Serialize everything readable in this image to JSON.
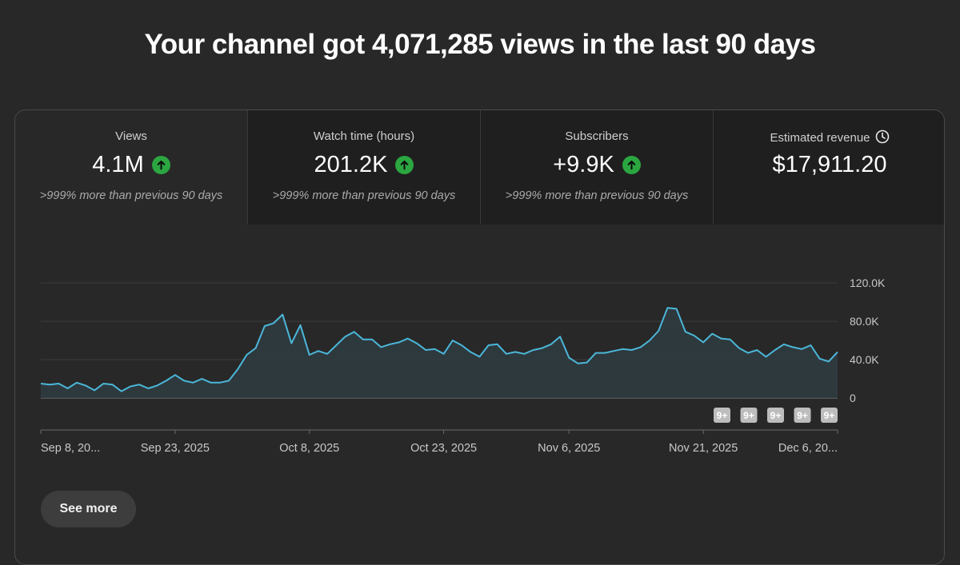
{
  "headline": "Your channel got 4,071,285 views in the last 90 days",
  "metrics": [
    {
      "label": "Views",
      "value": "4.1M",
      "delta": ">999% more than previous 90 days",
      "trend": "up"
    },
    {
      "label": "Watch time (hours)",
      "value": "201.2K",
      "delta": ">999% more than previous 90 days",
      "trend": "up"
    },
    {
      "label": "Subscribers",
      "value": "+9.9K",
      "delta": ">999% more than previous 90 days",
      "trend": "up"
    },
    {
      "label": "Estimated revenue",
      "value": "$17,911.20",
      "icon": "clock-icon"
    }
  ],
  "chart_data": {
    "type": "area",
    "ylim": [
      0,
      120000
    ],
    "y_ticks": [
      0,
      40000,
      80000,
      120000
    ],
    "y_tick_labels": [
      "0",
      "40.0K",
      "80.0K",
      "120.0K"
    ],
    "x_tick_labels": [
      "Sep 8, 20...",
      "Sep 23, 2025",
      "Oct 8, 2025",
      "Oct 23, 2025",
      "Nov 6, 2025",
      "Nov 21, 2025",
      "Dec 6, 20..."
    ],
    "x_tick_index": [
      0,
      15,
      30,
      45,
      59,
      74,
      89
    ],
    "grid": true,
    "markers": [
      "9+",
      "9+",
      "9+",
      "9+",
      "9+"
    ],
    "values": [
      15000,
      14000,
      15000,
      10000,
      16000,
      13000,
      8000,
      15000,
      14000,
      7000,
      12000,
      14000,
      10000,
      13000,
      18000,
      24000,
      18000,
      16000,
      20000,
      16000,
      16000,
      18000,
      30000,
      45000,
      52000,
      75000,
      78000,
      87000,
      57000,
      76000,
      45000,
      49000,
      46000,
      55000,
      64000,
      69000,
      61000,
      61000,
      53000,
      56000,
      58000,
      62000,
      57000,
      50000,
      51000,
      46000,
      60000,
      55000,
      48000,
      43000,
      55000,
      56000,
      46000,
      48000,
      46000,
      50000,
      52000,
      56000,
      64000,
      42000,
      36000,
      37000,
      47000,
      47000,
      49000,
      51000,
      50000,
      53000,
      60000,
      70000,
      94000,
      93000,
      69000,
      65000,
      58000,
      67000,
      62000,
      61000,
      52000,
      47000,
      50000,
      43000,
      50000,
      56000,
      53000,
      51000,
      55000,
      41000,
      38000,
      48000
    ]
  },
  "see_more": "See more",
  "colors": {
    "line": "#4bb7d9",
    "fill": "#2f3b40",
    "up": "#2ba640"
  }
}
